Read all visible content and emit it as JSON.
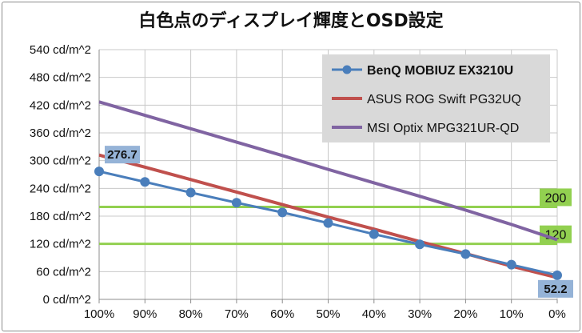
{
  "chart_data": {
    "type": "line",
    "title": "白色点のディスプレイ輝度とOSD設定",
    "categories": [
      "100%",
      "90%",
      "80%",
      "70%",
      "60%",
      "50%",
      "40%",
      "30%",
      "20%",
      "10%",
      "0%"
    ],
    "ylim": [
      0,
      540
    ],
    "yticks": [
      0,
      60,
      120,
      180,
      240,
      300,
      360,
      420,
      480,
      540
    ],
    "ytick_suffix": " cd/m^2",
    "grid": true,
    "legend_position": "top-right",
    "series": [
      {
        "name": "BenQ MOBIUZ EX3210U",
        "color": "#4a7ebb",
        "markers": true,
        "values": [
          276.7,
          254,
          231,
          209,
          188,
          165,
          141,
          119,
          98,
          75,
          52.2
        ]
      },
      {
        "name": "ASUS ROG Swift PG32UQ",
        "color": "#c0504d",
        "markers": false,
        "values": [
          312,
          286,
          259,
          232,
          205,
          178,
          152,
          125,
          99,
          72,
          47
        ]
      },
      {
        "name": "MSI Optix MPG321UR-QD",
        "color": "#8064a2",
        "markers": false,
        "values": [
          427,
          398,
          369,
          340,
          311,
          281,
          252,
          223,
          193,
          162,
          129
        ]
      }
    ],
    "reference_lines": [
      {
        "value": 200,
        "label": "200",
        "color": "#92d050"
      },
      {
        "value": 120,
        "label": "120",
        "color": "#92d050"
      }
    ],
    "data_labels": [
      {
        "series": 0,
        "index": 0,
        "text": "276.7"
      },
      {
        "series": 0,
        "index": 10,
        "text": "52.2"
      }
    ]
  }
}
